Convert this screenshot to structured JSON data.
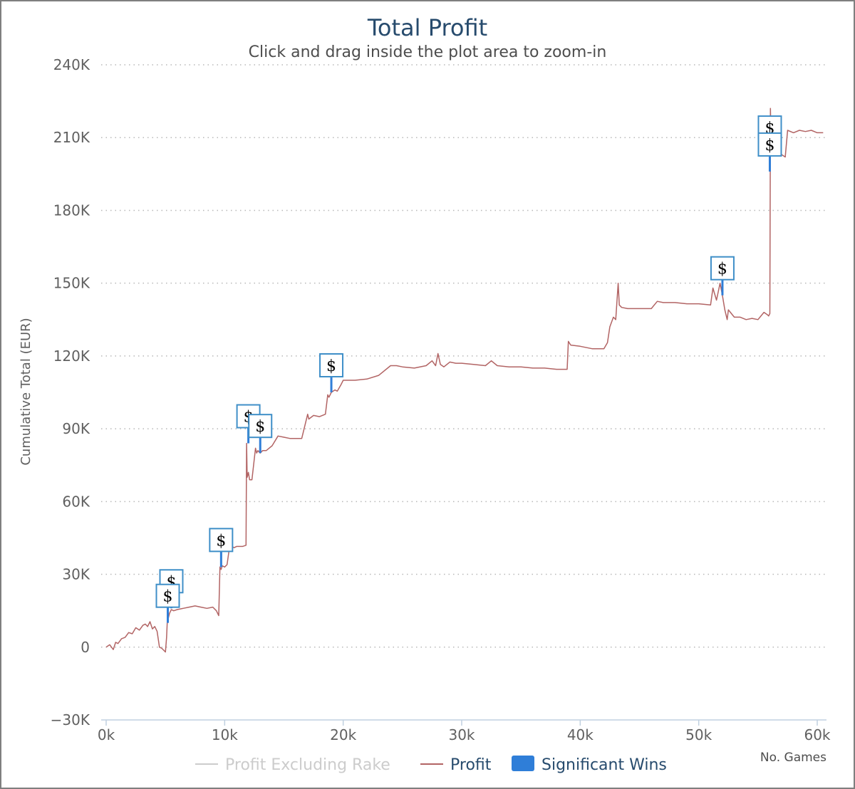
{
  "chart_data": {
    "type": "line",
    "title": "Total Profit",
    "subtitle": "Click and drag inside the plot area to zoom-in",
    "ylabel": "Cumulative Total (EUR)",
    "xlabel": "No. Games",
    "xlim": [
      0,
      60000
    ],
    "ylim": [
      -30000,
      240000
    ],
    "xticks": [
      "0k",
      "10k",
      "20k",
      "30k",
      "40k",
      "50k",
      "60k"
    ],
    "yticks": [
      "−30K",
      "0",
      "30K",
      "60K",
      "90K",
      "120K",
      "150K",
      "180K",
      "210K",
      "240K"
    ],
    "grid": "horizontal dotted",
    "legend_position": "bottom-center",
    "colors": {
      "profit": "#b26464",
      "excluding_rake": "#cccccc",
      "significant_wins": "#2f7ed8",
      "title": "#274b6d"
    },
    "series": [
      {
        "name": "Profit Excluding Rake",
        "visible": false,
        "x": [],
        "y": []
      },
      {
        "name": "Profit",
        "visible": true,
        "x": [
          0,
          300,
          600,
          800,
          1000,
          1300,
          1600,
          1900,
          2200,
          2500,
          2800,
          3100,
          3300,
          3500,
          3700,
          3900,
          4100,
          4300,
          4500,
          4700,
          4900,
          5000,
          5100,
          5150,
          5250,
          5350,
          5500,
          5700,
          6000,
          6500,
          7000,
          7500,
          8000,
          8500,
          9000,
          9300,
          9500,
          9600,
          9700,
          9800,
          10000,
          10200,
          10400,
          10600,
          10800,
          11000,
          11500,
          11800,
          11850,
          11900,
          12000,
          12100,
          12300,
          12600,
          12700,
          12800,
          13000,
          13200,
          13500,
          14000,
          14500,
          15000,
          15500,
          16000,
          16500,
          17000,
          17100,
          17500,
          18000,
          18500,
          18700,
          18800,
          19000,
          19300,
          19500,
          19800,
          20000,
          21000,
          22000,
          23000,
          24000,
          24500,
          25000,
          26000,
          27000,
          27500,
          27800,
          28000,
          28200,
          28500,
          29000,
          29500,
          30000,
          31000,
          32000,
          32500,
          33000,
          34000,
          35000,
          36000,
          37000,
          38000,
          38900,
          39000,
          39200,
          40000,
          41000,
          42000,
          42300,
          42500,
          42800,
          43000,
          43200,
          43300,
          43500,
          44000,
          45000,
          46000,
          46500,
          47000,
          48000,
          49000,
          50000,
          51000,
          51200,
          51500,
          51800,
          52000,
          52200,
          52400,
          52500,
          53000,
          53500,
          54000,
          54500,
          55000,
          55500,
          55800,
          55900,
          56000,
          56050,
          56100,
          56300,
          56500,
          57000,
          57300,
          57500,
          58000,
          58500,
          59000,
          59500,
          60000,
          60500
        ],
        "y": [
          0,
          1000,
          -1000,
          2000,
          1500,
          3500,
          4000,
          6000,
          5500,
          8000,
          7000,
          9000,
          9500,
          8500,
          10500,
          7500,
          8500,
          6500,
          0,
          -500,
          -1500,
          -2000,
          4000,
          10000,
          12000,
          14000,
          15500,
          15000,
          15500,
          16000,
          16500,
          17000,
          16500,
          16000,
          16500,
          15000,
          13000,
          33000,
          32000,
          33500,
          33000,
          34000,
          41000,
          41500,
          41000,
          41500,
          41500,
          42000,
          84000,
          70000,
          72000,
          69000,
          69000,
          82000,
          80000,
          81000,
          80000,
          81000,
          81000,
          83000,
          87000,
          86500,
          86000,
          86000,
          86000,
          96000,
          94000,
          95500,
          95000,
          96000,
          104000,
          103000,
          105000,
          106000,
          105500,
          108000,
          110000,
          110000,
          110500,
          112000,
          116000,
          116000,
          115500,
          115000,
          116000,
          118000,
          116000,
          121000,
          116500,
          115500,
          117500,
          117000,
          117000,
          116500,
          116000,
          118000,
          116000,
          115500,
          115500,
          115000,
          115000,
          114500,
          114500,
          126000,
          124500,
          124000,
          123000,
          123000,
          125500,
          132000,
          136000,
          135000,
          150000,
          141000,
          140000,
          139500,
          139500,
          139500,
          142500,
          142000,
          142000,
          141500,
          141500,
          141000,
          148000,
          143000,
          150000,
          145000,
          139000,
          135000,
          139000,
          136000,
          136000,
          135000,
          135500,
          135000,
          138000,
          137000,
          136500,
          137500,
          222000,
          210000,
          203000,
          204000,
          203000,
          202000,
          213000,
          212000,
          213000,
          212500,
          213000,
          212000,
          212000
        ]
      },
      {
        "name": "Significant Wins",
        "type": "flags",
        "label": "$",
        "x": [
          5500,
          5200,
          9700,
          12000,
          13000,
          19000,
          52000,
          56000,
          56000
        ],
        "y": [
          16000,
          10000,
          33000,
          84000,
          80000,
          105000,
          145000,
          203000,
          196000
        ]
      }
    ]
  }
}
